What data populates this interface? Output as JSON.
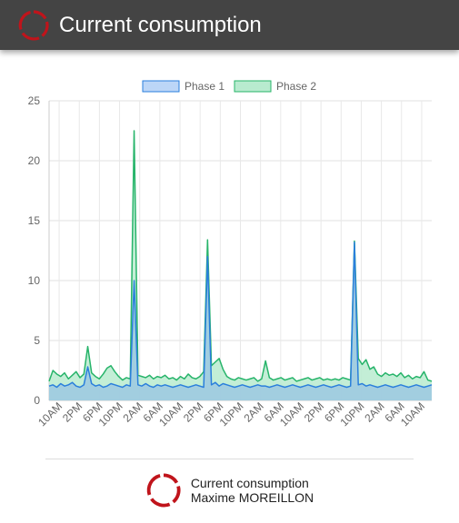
{
  "header": {
    "title": "Current consumption"
  },
  "footer": {
    "app_name": "Current consumption",
    "author": "Maxime MOREILLON"
  },
  "colors": {
    "header_bg": "#444444",
    "logo": "#c0141b",
    "phase1_stroke": "#2a7fdc",
    "phase1_fill": "#9ecae1",
    "phase2_stroke": "#27b46a",
    "phase2_fill": "#b8ebcf"
  },
  "chart_data": {
    "type": "line",
    "ylim": [
      0,
      25
    ],
    "yticks": [
      0,
      5,
      10,
      15,
      20,
      25
    ],
    "x_tick_labels": [
      "10AM",
      "2PM",
      "6PM",
      "10PM",
      "2AM",
      "6AM",
      "10AM",
      "2PM",
      "6PM",
      "10PM",
      "2AM",
      "6AM",
      "10AM",
      "2PM",
      "6PM",
      "10PM",
      "2AM",
      "6AM",
      "10AM"
    ],
    "legend_position": "top",
    "grid": true,
    "series": [
      {
        "name": "Phase 1",
        "values": [
          1.2,
          1.3,
          1.1,
          1.4,
          1.2,
          1.3,
          1.5,
          1.2,
          1.1,
          1.3,
          2.8,
          1.4,
          1.2,
          1.3,
          1.1,
          1.2,
          1.4,
          1.3,
          1.2,
          1.1,
          1.3,
          1.2,
          10.0,
          1.3,
          1.2,
          1.4,
          1.2,
          1.1,
          1.3,
          1.2,
          1.3,
          1.2,
          1.1,
          1.2,
          1.3,
          1.2,
          1.1,
          1.2,
          1.3,
          1.2,
          1.1,
          12.0,
          1.3,
          1.5,
          1.2,
          1.4,
          1.3,
          1.2,
          1.1,
          1.2,
          1.3,
          1.2,
          1.1,
          1.2,
          1.3,
          1.2,
          1.2,
          1.1,
          1.2,
          1.3,
          1.2,
          1.1,
          1.2,
          1.3,
          1.2,
          1.1,
          1.2,
          1.3,
          1.2,
          1.1,
          1.2,
          1.3,
          1.2,
          1.1,
          1.2,
          1.3,
          1.2,
          1.1,
          1.2,
          13.2,
          1.3,
          1.4,
          1.2,
          1.3,
          1.2,
          1.1,
          1.2,
          1.3,
          1.2,
          1.1,
          1.2,
          1.3,
          1.2,
          1.1,
          1.2,
          1.3,
          1.2,
          1.1,
          1.2,
          1.3
        ]
      },
      {
        "name": "Phase 2",
        "values": [
          1.6,
          2.5,
          2.2,
          2.0,
          2.3,
          1.8,
          2.1,
          2.4,
          1.9,
          2.2,
          4.5,
          2.3,
          2.0,
          1.8,
          2.2,
          2.7,
          2.9,
          2.4,
          2.0,
          1.7,
          1.9,
          1.8,
          22.5,
          2.1,
          2.0,
          1.9,
          2.1,
          1.8,
          2.0,
          1.9,
          2.1,
          1.8,
          1.9,
          1.7,
          2.0,
          1.8,
          2.2,
          1.9,
          1.8,
          2.0,
          2.4,
          13.4,
          2.9,
          3.2,
          3.5,
          2.6,
          2.0,
          1.8,
          1.7,
          1.9,
          1.8,
          1.7,
          1.8,
          1.9,
          1.6,
          1.8,
          3.3,
          1.9,
          1.7,
          1.8,
          1.9,
          1.7,
          1.8,
          1.9,
          1.6,
          1.7,
          1.8,
          1.9,
          1.7,
          1.8,
          1.9,
          1.7,
          1.8,
          1.7,
          1.8,
          1.7,
          1.9,
          1.8,
          1.7,
          13.3,
          3.5,
          3.0,
          3.4,
          2.6,
          2.8,
          2.2,
          2.0,
          2.3,
          2.1,
          2.2,
          2.0,
          2.3,
          1.9,
          2.1,
          1.8,
          2.0,
          1.9,
          2.4,
          1.7,
          1.6
        ]
      }
    ]
  }
}
